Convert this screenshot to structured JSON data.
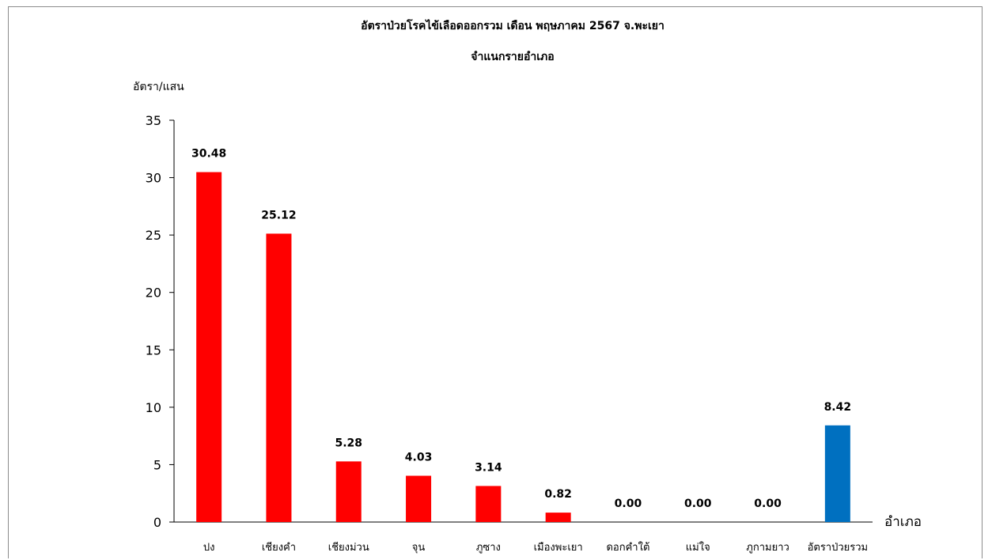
{
  "chart_data": {
    "type": "bar",
    "title": "อัตราป่วยโรคไข้เลือดออกรวม  เดือน พฤษภาคม 2567   จ.พะเยา",
    "subtitle": "จำแนกรายอำเภอ",
    "ylabel": "อัตรา/แสน",
    "xlabel": "อำเภอ",
    "ylim": [
      0,
      35
    ],
    "yticks": [
      0,
      5,
      10,
      15,
      20,
      25,
      30,
      35
    ],
    "grid": false,
    "categories": [
      "ปง",
      "เชียงคำ",
      "เชียงม่วน",
      "จุน",
      "ภูซาง",
      "เมืองพะเยา",
      "ดอกคำใต้",
      "แม่ใจ",
      "ภูกามยาว",
      "อัตราป่วยรวม"
    ],
    "values": [
      30.48,
      25.12,
      5.28,
      4.03,
      3.14,
      0.82,
      0.0,
      0.0,
      0.0,
      8.42
    ],
    "value_labels": [
      "30.48",
      "25.12",
      "5.28",
      "4.03",
      "3.14",
      "0.82",
      "0.00",
      "0.00",
      "0.00",
      "8.42"
    ],
    "colors": [
      "#ff0000",
      "#ff0000",
      "#ff0000",
      "#ff0000",
      "#ff0000",
      "#ff0000",
      "#ff0000",
      "#ff0000",
      "#ff0000",
      "#0070c0"
    ]
  }
}
